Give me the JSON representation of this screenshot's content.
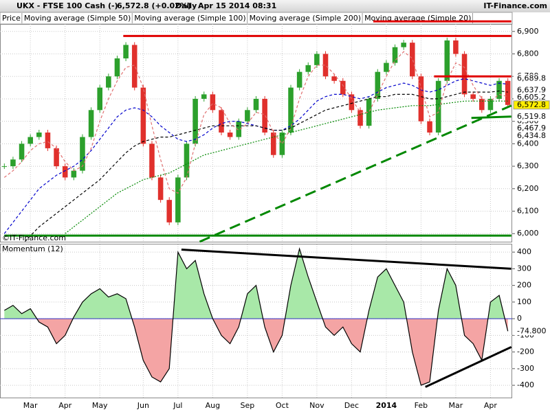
{
  "header": {
    "symbol": "UKX - FTSE 100 Cash (-)",
    "quote": "6,572.8 (+0.02%)",
    "period": "Daily",
    "timestamp": "Apr 15 2014 08:31",
    "brand": "IT-Finance.com"
  },
  "chart_data": [
    {
      "type": "candlestick",
      "legend_first": "Price",
      "watermark": "©IT-Finance.com",
      "categories": [
        null,
        null,
        null,
        "Mar",
        null,
        null,
        null,
        "Apr",
        null,
        null,
        null,
        "May",
        null,
        null,
        null,
        null,
        "Jun",
        null,
        null,
        null,
        "Jul",
        null,
        null,
        null,
        "Aug",
        null,
        null,
        null,
        "Sep",
        null,
        null,
        null,
        "Oct",
        null,
        null,
        null,
        "Nov",
        null,
        null,
        null,
        "Dec",
        null,
        null,
        null,
        "2014",
        null,
        null,
        null,
        "Feb",
        null,
        null,
        null,
        "Mar",
        null,
        null,
        null,
        "Apr",
        null,
        null
      ],
      "bold_category": "2014",
      "ylim": [
        5964,
        6933
      ],
      "yticks": [
        {
          "value": 6000,
          "label": "6,000"
        },
        {
          "value": 6100,
          "label": "6,100"
        },
        {
          "value": 6200,
          "label": "6,200"
        },
        {
          "value": 6300,
          "label": "6,300"
        },
        {
          "value": 6400,
          "label": "6,400"
        },
        {
          "value": 6500,
          "label": "6,500"
        },
        {
          "value": 6600,
          "label": "6,600"
        },
        {
          "value": 6700,
          "label": "6,700"
        },
        {
          "value": 6800,
          "label": "6,800"
        },
        {
          "value": 6900,
          "label": "6,900"
        }
      ],
      "grid": true,
      "up_color": "#2ca02c",
      "down_color": "#e0302c",
      "series": [
        {
          "name": "Price",
          "style": "candle",
          "color": "#000000",
          "values": [
            6300,
            6330,
            6400,
            6430,
            6450,
            6380,
            6300,
            6250,
            6280,
            6430,
            6550,
            6650,
            6700,
            6780,
            6840,
            6650,
            6400,
            6250,
            6150,
            6050,
            6250,
            6400,
            6600,
            6620,
            6550,
            6450,
            6430,
            6500,
            6550,
            6600,
            6450,
            6350,
            6450,
            6650,
            6720,
            6750,
            6800,
            6700,
            6680,
            6620,
            6550,
            6480,
            6600,
            6720,
            6760,
            6830,
            6850,
            6700,
            6500,
            6450,
            6680,
            6860,
            6800,
            6620,
            6600,
            6550,
            6600,
            6680,
            6572.8
          ]
        },
        {
          "name": "Moving average (Simple 50)",
          "style": "dash",
          "color": "#0000cc",
          "values": [
            6000,
            6050,
            6100,
            6150,
            6200,
            6230,
            6260,
            6280,
            6300,
            6330,
            6370,
            6420,
            6470,
            6520,
            6550,
            6560,
            6550,
            6520,
            6480,
            6450,
            6420,
            6410,
            6420,
            6440,
            6470,
            6490,
            6500,
            6500,
            6490,
            6480,
            6470,
            6460,
            6460,
            6480,
            6510,
            6550,
            6590,
            6610,
            6620,
            6620,
            6610,
            6600,
            6610,
            6630,
            6650,
            6660,
            6670,
            6660,
            6640,
            6630,
            6640,
            6660,
            6680,
            6690,
            6680,
            6670,
            6660,
            6670,
            6665
          ]
        },
        {
          "name": "Moving average (Simple 100)",
          "style": "dash",
          "color": "#000000",
          "values": [
            null,
            null,
            5950,
            5990,
            6030,
            6060,
            6090,
            6120,
            6150,
            6180,
            6210,
            6240,
            6280,
            6320,
            6360,
            6390,
            6410,
            6420,
            6430,
            6430,
            6440,
            6450,
            6460,
            6470,
            6480,
            6480,
            6480,
            6480,
            6480,
            6480,
            6470,
            6460,
            6460,
            6470,
            6490,
            6510,
            6530,
            6550,
            6560,
            6570,
            6580,
            6590,
            6600,
            6610,
            6610,
            6620,
            6620,
            6620,
            6610,
            6600,
            6600,
            6610,
            6620,
            6630,
            6630,
            6630,
            6630,
            6635,
            6630
          ]
        },
        {
          "name": "Moving average (Simple 200)",
          "style": "dot",
          "color": "#008800",
          "values": [
            null,
            null,
            null,
            null,
            null,
            null,
            null,
            6000,
            6030,
            6060,
            6090,
            6120,
            6150,
            6180,
            6200,
            6220,
            6240,
            6250,
            6260,
            6270,
            6290,
            6310,
            6330,
            6350,
            6360,
            6370,
            6380,
            6390,
            6400,
            6410,
            6420,
            6430,
            6440,
            6450,
            6460,
            6470,
            6480,
            6490,
            6500,
            6510,
            6520,
            6530,
            6540,
            6550,
            6555,
            6560,
            6565,
            6570,
            6570,
            6570,
            6575,
            6580,
            6585,
            6590,
            6590,
            6590,
            6590,
            6590,
            6590
          ]
        },
        {
          "name": "Moving average (Simple 20)",
          "style": "dash",
          "color": "#e07070",
          "values": [
            6250,
            6280,
            6320,
            6370,
            6400,
            6410,
            6380,
            6320,
            6280,
            6300,
            6380,
            6500,
            6600,
            6680,
            6740,
            6750,
            6650,
            6480,
            6330,
            6200,
            6180,
            6250,
            6400,
            6530,
            6580,
            6560,
            6490,
            6460,
            6490,
            6540,
            6530,
            6450,
            6400,
            6470,
            6600,
            6700,
            6750,
            6750,
            6710,
            6660,
            6600,
            6540,
            6540,
            6620,
            6700,
            6770,
            6810,
            6780,
            6650,
            6520,
            6540,
            6680,
            6760,
            6740,
            6660,
            6600,
            6590,
            6620,
            6610
          ]
        }
      ],
      "value_tags": [
        {
          "value": 6689.8,
          "label": "6,689.8",
          "color": "#e00000",
          "bg": "#ffffff"
        },
        {
          "value": 6637.9,
          "label": "6,637.9",
          "color": "#e00000",
          "bg": "#ffffff"
        },
        {
          "value": 6605.2,
          "label": "6,605.2",
          "color": "#000000",
          "bg": "#ffffff"
        },
        {
          "value": 6572.8,
          "label": "6,572.8",
          "color": "#000000",
          "bg": "#ffee00"
        },
        {
          "value": 6519.8,
          "label": "6,519.8",
          "color": "#0000cc",
          "bg": "#ffffff"
        },
        {
          "value": 6467.9,
          "label": "6,467.9",
          "color": "#008800",
          "bg": "#ffffff"
        },
        {
          "value": 6434.8,
          "label": "6,434.8",
          "color": "#008800",
          "bg": "#ffffff"
        }
      ],
      "trend_lines": [
        {
          "color": "#e00000",
          "dashed": false,
          "points": [
            [
              13.7,
              6880
            ],
            [
              58.4,
              6880
            ]
          ]
        },
        {
          "color": "#e00000",
          "dashed": false,
          "points": [
            [
              42.5,
              6945
            ],
            [
              58.4,
              6945
            ]
          ]
        },
        {
          "color": "#e00000",
          "dashed": false,
          "points": [
            [
              49.5,
              6700
            ],
            [
              58.4,
              6700
            ]
          ]
        },
        {
          "color": "#008800",
          "dashed": false,
          "points": [
            [
              0,
              5991
            ],
            [
              58.4,
              5991
            ]
          ]
        },
        {
          "color": "#008800",
          "dashed": true,
          "points": [
            [
              22.5,
              5964
            ],
            [
              58.4,
              6570
            ]
          ]
        },
        {
          "color": "#008800",
          "dashed": false,
          "points": [
            [
              53.8,
              6515
            ],
            [
              58.4,
              6521
            ]
          ]
        }
      ]
    },
    {
      "type": "area",
      "title": "Momentum (12)",
      "ylim": [
        -478,
        446
      ],
      "yticks": [
        -400,
        -300,
        -200,
        -100,
        0,
        100,
        200,
        300,
        400
      ],
      "grid": true,
      "pos_color": "#a8e8a8",
      "neg_color": "#f4a4a4",
      "line_color": "#000000",
      "values": [
        50,
        80,
        30,
        60,
        -20,
        -50,
        -150,
        -100,
        10,
        100,
        150,
        180,
        130,
        150,
        120,
        -50,
        -250,
        -350,
        -380,
        -300,
        400,
        300,
        350,
        150,
        0,
        -100,
        -150,
        -50,
        150,
        200,
        -50,
        -200,
        -100,
        200,
        420,
        250,
        100,
        -50,
        -100,
        -50,
        -150,
        -200,
        50,
        250,
        300,
        200,
        100,
        -200,
        -400,
        -380,
        50,
        300,
        200,
        -100,
        -150,
        -250,
        100,
        140,
        -74.8
      ],
      "value_tag": {
        "value": -74.8,
        "label": "-74.800",
        "color": "#e00000"
      },
      "trend_lines": [
        {
          "color": "#000000",
          "points": [
            [
              20.4,
              415
            ],
            [
              58.4,
              300
            ]
          ]
        },
        {
          "color": "#000000",
          "points": [
            [
              48.5,
              -410
            ],
            [
              58.4,
              -170
            ]
          ]
        }
      ]
    }
  ]
}
